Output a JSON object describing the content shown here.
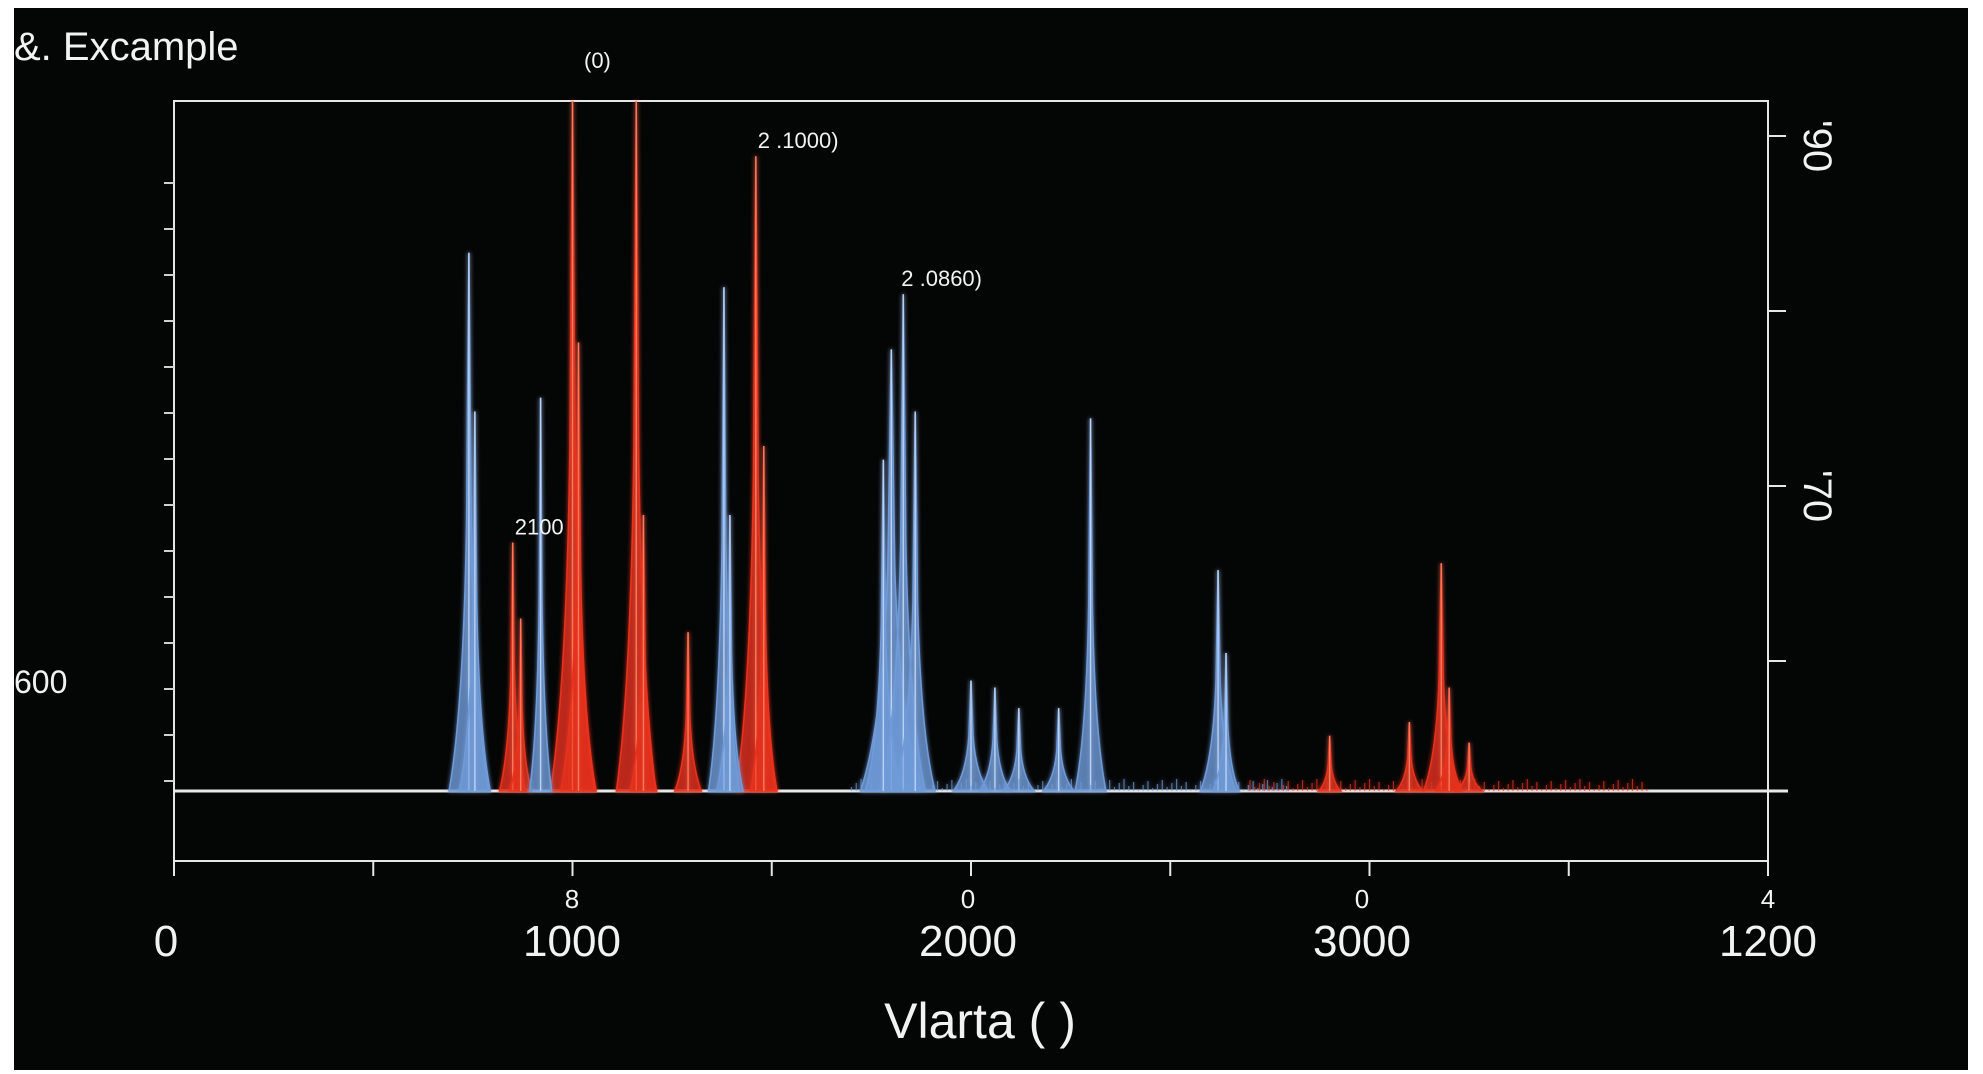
{
  "chart_data": {
    "type": "line",
    "title": "&. Excample",
    "xlabel": "Vlarta ( )",
    "ylabel": "",
    "x_ticks_major": [
      "0",
      "1000",
      "2000",
      "3000",
      "1200"
    ],
    "x_ticks_minor": [
      "8",
      "0",
      "0",
      "4"
    ],
    "y_label_left": "600",
    "y_labels_right": [
      "'90",
      "'70"
    ],
    "top_marker": "(0)",
    "annotations": [
      {
        "text": "2 .1000)",
        "series": "Red",
        "x": 1460
      },
      {
        "text": "2 .0860)",
        "series": "Blue",
        "x": 1820
      },
      {
        "text": "2100",
        "series": "Red",
        "x": 850
      }
    ],
    "xlim": [
      0,
      4000
    ],
    "ylim": [
      0,
      100
    ],
    "colors": {
      "background": "#040505",
      "red": "#e8321e",
      "blue": "#6f9bd8",
      "axis": "#e6e6e6"
    },
    "series": [
      {
        "color": "#e8321e",
        "peaks": [
          {
            "x": 850,
            "y": 36,
            "w": 6
          },
          {
            "x": 870,
            "y": 25,
            "w": 5
          },
          {
            "x": 1000,
            "y": 100,
            "w": 10
          },
          {
            "x": 1015,
            "y": 65,
            "w": 8
          },
          {
            "x": 1160,
            "y": 100,
            "w": 9
          },
          {
            "x": 1178,
            "y": 40,
            "w": 6
          },
          {
            "x": 1290,
            "y": 23,
            "w": 6
          },
          {
            "x": 1460,
            "y": 92,
            "w": 9
          },
          {
            "x": 1480,
            "y": 50,
            "w": 6
          },
          {
            "x": 2900,
            "y": 8,
            "w": 5
          },
          {
            "x": 3100,
            "y": 10,
            "w": 6
          },
          {
            "x": 3180,
            "y": 33,
            "w": 8
          },
          {
            "x": 3200,
            "y": 15,
            "w": 6
          },
          {
            "x": 3250,
            "y": 7,
            "w": 6
          }
        ]
      },
      {
        "color": "#6f9bd8",
        "peaks": [
          {
            "x": 740,
            "y": 78,
            "w": 9
          },
          {
            "x": 755,
            "y": 55,
            "w": 7
          },
          {
            "x": 920,
            "y": 57,
            "w": 5
          },
          {
            "x": 1380,
            "y": 73,
            "w": 7
          },
          {
            "x": 1395,
            "y": 40,
            "w": 6
          },
          {
            "x": 1800,
            "y": 64,
            "w": 14
          },
          {
            "x": 1830,
            "y": 72,
            "w": 10
          },
          {
            "x": 1860,
            "y": 55,
            "w": 9
          },
          {
            "x": 1780,
            "y": 48,
            "w": 8
          },
          {
            "x": 2000,
            "y": 16,
            "w": 8
          },
          {
            "x": 2060,
            "y": 15,
            "w": 7
          },
          {
            "x": 2120,
            "y": 12,
            "w": 7
          },
          {
            "x": 2220,
            "y": 12,
            "w": 7
          },
          {
            "x": 2300,
            "y": 54,
            "w": 7
          },
          {
            "x": 2620,
            "y": 32,
            "w": 8
          },
          {
            "x": 2640,
            "y": 20,
            "w": 6
          }
        ]
      }
    ]
  }
}
